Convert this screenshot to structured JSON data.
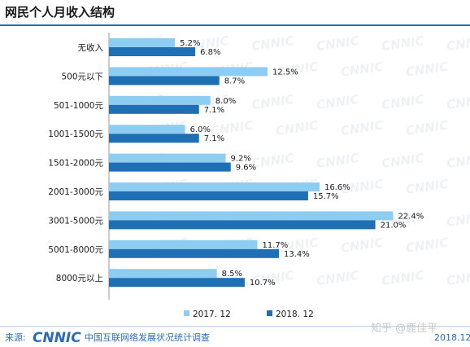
{
  "title": "网民个人月收入结构",
  "colors": {
    "series1": "#8ecdf2",
    "series2": "#1f6fb5",
    "title_bar": "#2a6db5",
    "footer": "#2a6db5"
  },
  "legend": {
    "items": [
      "2017. 12",
      "2018. 12"
    ]
  },
  "footer": {
    "source_label": "来源:",
    "logo": "CNNIC",
    "source_text": "中国互联网络发展状况统计调查",
    "date": "2018.12",
    "watermark": "知乎 @鹿佳平"
  },
  "chart_data": {
    "type": "bar",
    "orientation": "horizontal",
    "title": "网民个人月收入结构",
    "categories": [
      "无收入",
      "500元以下",
      "501-1000元",
      "1001-1500元",
      "1501-2000元",
      "2001-3000元",
      "3001-5000元",
      "5001-8000元",
      "8000元以上"
    ],
    "series": [
      {
        "name": "2017. 12",
        "values": [
          5.2,
          12.5,
          8.0,
          6.0,
          9.2,
          16.6,
          22.4,
          11.7,
          8.5
        ],
        "labels": [
          "5.2%",
          "12.5%",
          "8.0%",
          "6.0%",
          "9.2%",
          "16.6%",
          "22.4%",
          "11.7%",
          "8.5%"
        ]
      },
      {
        "name": "2018. 12",
        "values": [
          6.8,
          8.7,
          7.1,
          7.1,
          9.6,
          15.7,
          21.0,
          13.4,
          10.7
        ],
        "labels": [
          "6.8%",
          "8.7%",
          "7.1%",
          "7.1%",
          "9.6%",
          "15.7%",
          "21.0%",
          "13.4%",
          "10.7%"
        ]
      }
    ],
    "grid": false,
    "legend_position": "bottom"
  }
}
